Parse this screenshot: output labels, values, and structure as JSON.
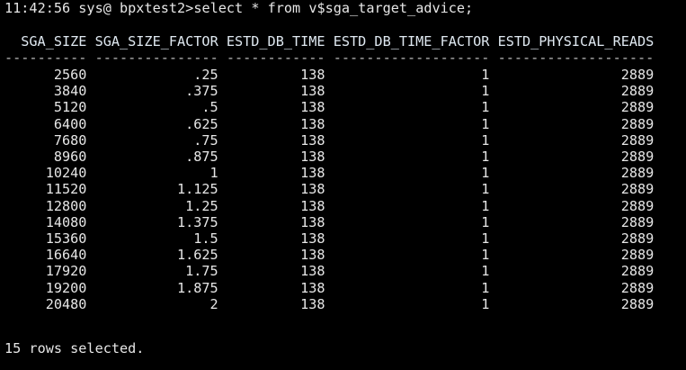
{
  "terminal": {
    "prompt": "11:42:56 sys@ bpxtest2>",
    "command": "select * from v$sga_target_advice;",
    "footer": "15 rows selected."
  },
  "table": {
    "columns": [
      "SGA_SIZE",
      "SGA_SIZE_FACTOR",
      "ESTD_DB_TIME",
      "ESTD_DB_TIME_FACTOR",
      "ESTD_PHYSICAL_READS"
    ],
    "rows": [
      [
        "2560",
        ".25",
        "138",
        "1",
        "2889"
      ],
      [
        "3840",
        ".375",
        "138",
        "1",
        "2889"
      ],
      [
        "5120",
        ".5",
        "138",
        "1",
        "2889"
      ],
      [
        "6400",
        ".625",
        "138",
        "1",
        "2889"
      ],
      [
        "7680",
        ".75",
        "138",
        "1",
        "2889"
      ],
      [
        "8960",
        ".875",
        "138",
        "1",
        "2889"
      ],
      [
        "10240",
        "1",
        "138",
        "1",
        "2889"
      ],
      [
        "11520",
        "1.125",
        "138",
        "1",
        "2889"
      ],
      [
        "12800",
        "1.25",
        "138",
        "1",
        "2889"
      ],
      [
        "14080",
        "1.375",
        "138",
        "1",
        "2889"
      ],
      [
        "15360",
        "1.5",
        "138",
        "1",
        "2889"
      ],
      [
        "16640",
        "1.625",
        "138",
        "1",
        "2889"
      ],
      [
        "17920",
        "1.75",
        "138",
        "1",
        "2889"
      ],
      [
        "19200",
        "1.875",
        "138",
        "1",
        "2889"
      ],
      [
        "20480",
        "2",
        "138",
        "1",
        "2889"
      ]
    ]
  }
}
